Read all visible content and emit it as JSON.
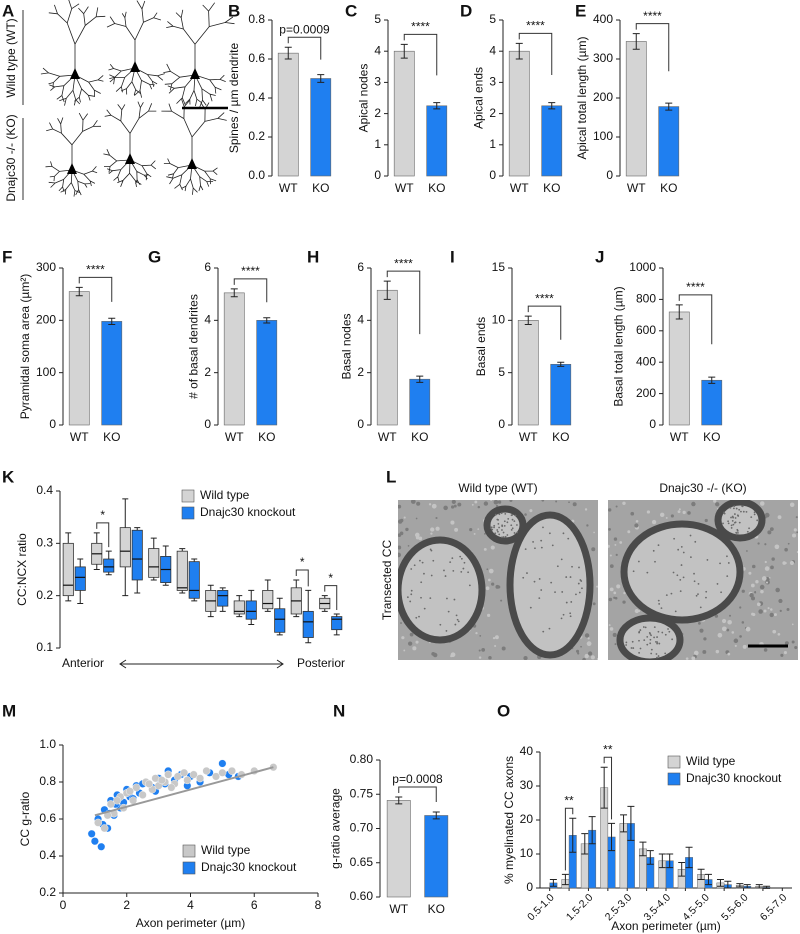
{
  "image_panels": [
    {
      "panel": "A",
      "row_labels": [
        "Wild type (WT)",
        "Dnajc30 -/- (KO)"
      ]
    },
    {
      "panel": "L",
      "side_label": "Transected CC",
      "captions": [
        "Wild type (WT)",
        "Dnajc30 -/- (KO)"
      ]
    }
  ],
  "chart_data": [
    {
      "panel": "B",
      "type": "bar",
      "ylabel": "Spines / µm dendrite",
      "categories": [
        "WT",
        "KO"
      ],
      "values": [
        0.63,
        0.5
      ],
      "errors": [
        0.03,
        0.02
      ],
      "colors": [
        "#d4d4d4",
        "#1f7ff0"
      ],
      "ylim": [
        0,
        0.8
      ],
      "yticks": [
        {
          "value": 0,
          "label": "0.0"
        },
        0.2,
        0.4,
        0.6,
        0.8
      ],
      "annotation": "p=0.0009"
    },
    {
      "panel": "C",
      "type": "bar",
      "ylabel": "Apical nodes",
      "categories": [
        "WT",
        "KO"
      ],
      "values": [
        4.0,
        2.25
      ],
      "errors": [
        0.22,
        0.1
      ],
      "colors": [
        "#d4d4d4",
        "#1f7ff0"
      ],
      "ylim": [
        0,
        5
      ],
      "yticks": [
        0,
        1,
        2,
        3,
        4,
        5
      ],
      "annotation": "****"
    },
    {
      "panel": "D",
      "type": "bar",
      "ylabel": "Apical ends",
      "categories": [
        "WT",
        "KO"
      ],
      "values": [
        4.0,
        2.25
      ],
      "errors": [
        0.25,
        0.1
      ],
      "colors": [
        "#d4d4d4",
        "#1f7ff0"
      ],
      "ylim": [
        0,
        5
      ],
      "yticks": [
        0,
        1,
        2,
        3,
        4,
        5
      ],
      "annotation": "****"
    },
    {
      "panel": "E",
      "type": "bar",
      "ylabel": "Apical total length (µm)",
      "categories": [
        "WT",
        "KO"
      ],
      "values": [
        345,
        178
      ],
      "errors": [
        20,
        9
      ],
      "colors": [
        "#d4d4d4",
        "#1f7ff0"
      ],
      "ylim": [
        0,
        400
      ],
      "yticks": [
        0,
        100,
        200,
        300,
        400
      ],
      "annotation": "****"
    },
    {
      "panel": "F",
      "type": "bar",
      "ylabel": "Pyramidal soma area (µm²)",
      "categories": [
        "WT",
        "KO"
      ],
      "values": [
        255,
        198
      ],
      "errors": [
        8,
        6
      ],
      "colors": [
        "#d4d4d4",
        "#1f7ff0"
      ],
      "ylim": [
        0,
        300
      ],
      "yticks": [
        0,
        100,
        200,
        300
      ],
      "annotation": "****"
    },
    {
      "panel": "G",
      "type": "bar",
      "ylabel": "# of basal dendrites",
      "categories": [
        "WT",
        "KO"
      ],
      "values": [
        5.05,
        4.0
      ],
      "errors": [
        0.15,
        0.1
      ],
      "colors": [
        "#d4d4d4",
        "#1f7ff0"
      ],
      "ylim": [
        0,
        6
      ],
      "yticks": [
        0,
        2,
        4,
        6
      ],
      "annotation": "****"
    },
    {
      "panel": "H",
      "type": "bar",
      "ylabel": "Basal nodes",
      "categories": [
        "WT",
        "KO"
      ],
      "values": [
        5.15,
        1.75
      ],
      "errors": [
        0.35,
        0.12
      ],
      "colors": [
        "#d4d4d4",
        "#1f7ff0"
      ],
      "ylim": [
        0,
        6
      ],
      "yticks": [
        0,
        2,
        4,
        6
      ],
      "annotation": "****"
    },
    {
      "panel": "I",
      "type": "bar",
      "ylabel": "Basal ends",
      "categories": [
        "WT",
        "KO"
      ],
      "values": [
        10.0,
        5.8
      ],
      "errors": [
        0.4,
        0.2
      ],
      "colors": [
        "#d4d4d4",
        "#1f7ff0"
      ],
      "ylim": [
        0,
        15
      ],
      "yticks": [
        0,
        5,
        10,
        15
      ],
      "annotation": "****"
    },
    {
      "panel": "J",
      "type": "bar",
      "ylabel": "Basal total length (µm)",
      "categories": [
        "WT",
        "KO"
      ],
      "values": [
        720,
        285
      ],
      "errors": [
        45,
        20
      ],
      "colors": [
        "#d4d4d4",
        "#1f7ff0"
      ],
      "ylim": [
        0,
        1000
      ],
      "yticks": [
        0,
        200,
        400,
        600,
        800,
        1000
      ],
      "annotation": "****"
    },
    {
      "panel": "K",
      "type": "box",
      "ylabel": "CC:NCX ratio",
      "ylim": [
        0.1,
        0.4
      ],
      "yticks": [
        0.1,
        0.2,
        0.3,
        0.4
      ],
      "legend": "upper center",
      "x_start_label": "Anterior",
      "x_end_label": "Posterior",
      "series": [
        {
          "name": "Wild type",
          "color": "#d4d4d4",
          "boxes": [
            [
              0.19,
              0.2,
              0.22,
              0.3,
              0.32
            ],
            [
              0.25,
              0.26,
              0.28,
              0.3,
              0.32
            ],
            [
              0.2,
              0.255,
              0.285,
              0.33,
              0.385
            ],
            [
              0.23,
              0.235,
              0.255,
              0.29,
              0.31
            ],
            [
              0.205,
              0.21,
              0.215,
              0.285,
              0.29
            ],
            [
              0.16,
              0.17,
              0.19,
              0.21,
              0.22
            ],
            [
              0.16,
              0.165,
              0.17,
              0.19,
              0.2
            ],
            [
              0.17,
              0.175,
              0.185,
              0.21,
              0.23
            ],
            [
              0.16,
              0.165,
              0.19,
              0.215,
              0.23
            ],
            [
              0.17,
              0.175,
              0.185,
              0.195,
              0.2
            ]
          ]
        },
        {
          "name": "Dnajc30 knockout",
          "color": "#1f7ff0",
          "boxes": [
            [
              0.185,
              0.21,
              0.235,
              0.255,
              0.27
            ],
            [
              0.24,
              0.245,
              0.255,
              0.27,
              0.285
            ],
            [
              0.205,
              0.23,
              0.27,
              0.325,
              0.33
            ],
            [
              0.22,
              0.225,
              0.25,
              0.275,
              0.295
            ],
            [
              0.19,
              0.195,
              0.21,
              0.265,
              0.27
            ],
            [
              0.17,
              0.18,
              0.2,
              0.21,
              0.215
            ],
            [
              0.145,
              0.155,
              0.17,
              0.19,
              0.21
            ],
            [
              0.125,
              0.13,
              0.155,
              0.175,
              0.195
            ],
            [
              0.11,
              0.12,
              0.15,
              0.17,
              0.21
            ],
            [
              0.125,
              0.135,
              0.155,
              0.16,
              0.165
            ]
          ]
        }
      ],
      "annotations": [
        {
          "text": "*",
          "index": 1
        },
        {
          "text": "*",
          "index": 8
        },
        {
          "text": "*",
          "index": 9
        }
      ]
    },
    {
      "panel": "M",
      "type": "scatter",
      "xlabel": "Axon perimeter (µm)",
      "ylabel": "CC g-ratio",
      "xlim": [
        0,
        8
      ],
      "xticks": [
        0,
        2,
        4,
        6,
        8
      ],
      "ylim": [
        0.2,
        1.0
      ],
      "yticks": [
        0.2,
        0.4,
        0.6,
        0.8,
        {
          "value": 1.0,
          "label": "1.0"
        }
      ],
      "legend": "lower right",
      "series": [
        {
          "name": "Wild type",
          "color": "#c8c8c8",
          "x": [
            1.1,
            1.3,
            1.5,
            1.6,
            1.8,
            1.9,
            2.0,
            2.2,
            2.3,
            2.5,
            2.6,
            2.8,
            2.9,
            3.0,
            3.2,
            3.3,
            3.5,
            3.6,
            3.8,
            3.9,
            4.1,
            4.3,
            4.5,
            4.8,
            5.0,
            5.3,
            5.6,
            6.0,
            6.6,
            1.4,
            1.7,
            2.1,
            2.7,
            3.1,
            3.4
          ],
          "values": [
            0.58,
            0.55,
            0.68,
            0.63,
            0.72,
            0.66,
            0.74,
            0.7,
            0.77,
            0.73,
            0.8,
            0.76,
            0.82,
            0.78,
            0.8,
            0.84,
            0.79,
            0.83,
            0.85,
            0.81,
            0.84,
            0.82,
            0.86,
            0.83,
            0.85,
            0.86,
            0.84,
            0.86,
            0.88,
            0.62,
            0.7,
            0.75,
            0.79,
            0.81,
            0.77
          ]
        },
        {
          "name": "Dnajc30 knockout",
          "color": "#1f7ff0",
          "x": [
            0.9,
            1.0,
            1.1,
            1.2,
            1.3,
            1.4,
            1.5,
            1.6,
            1.7,
            1.8,
            1.9,
            2.0,
            2.1,
            2.3,
            2.4,
            2.6,
            2.8,
            3.0,
            3.2,
            3.5,
            3.7,
            4.0,
            4.3,
            4.6,
            5.0,
            5.2,
            5.5,
            1.25,
            1.45,
            1.65,
            2.2,
            2.5,
            2.9,
            3.3,
            3.9
          ],
          "values": [
            0.52,
            0.48,
            0.6,
            0.45,
            0.65,
            0.55,
            0.7,
            0.62,
            0.73,
            0.66,
            0.69,
            0.76,
            0.72,
            0.78,
            0.74,
            0.8,
            0.77,
            0.82,
            0.79,
            0.81,
            0.84,
            0.83,
            0.8,
            0.85,
            0.9,
            0.84,
            0.83,
            0.57,
            0.63,
            0.68,
            0.71,
            0.79,
            0.75,
            0.86,
            0.78
          ]
        }
      ],
      "fit_line": {
        "color": "#999999",
        "x": [
          1.0,
          6.6
        ],
        "y": [
          0.62,
          0.88
        ]
      }
    },
    {
      "panel": "N",
      "type": "bar",
      "ylabel": "g-ratio average",
      "categories": [
        "WT",
        "KO"
      ],
      "values": [
        0.741,
        0.719
      ],
      "errors": [
        0.005,
        0.005
      ],
      "colors": [
        "#d4d4d4",
        "#1f7ff0"
      ],
      "ylim": [
        0.6,
        0.8
      ],
      "yticks": [
        {
          "value": 0.6,
          "label": "0.60"
        },
        0.65,
        {
          "value": 0.7,
          "label": "0.70"
        },
        0.75,
        {
          "value": 0.8,
          "label": "0.80"
        }
      ],
      "annotation": "p=0.0008"
    },
    {
      "panel": "O",
      "type": "grouped_bar",
      "xlabel": "Axon perimeter (µm)",
      "ylabel": "% myelinated CC axons",
      "ylim": [
        0,
        40
      ],
      "yticks": [
        0,
        10,
        20,
        30,
        40
      ],
      "legend": "upper right",
      "categories": [
        "0.5-1.0",
        null,
        "1.5-2.0",
        null,
        "2.5-3.0",
        null,
        "3.5-4.0",
        null,
        "4.5-5.0",
        null,
        "5.5-6.0",
        null,
        "6.5-7.0"
      ],
      "series": [
        {
          "name": "Wild type",
          "color": "#d4d4d4",
          "values": [
            0,
            2.5,
            13,
            29.5,
            19,
            11.5,
            8,
            5.5,
            4,
            1.5,
            0.8,
            0.5,
            0
          ],
          "errors": [
            0,
            1.5,
            3,
            6,
            2.5,
            2,
            2,
            2,
            1.5,
            1,
            0.5,
            0.5,
            0
          ]
        },
        {
          "name": "Dnajc30 knockout",
          "color": "#1f7ff0",
          "values": [
            1.5,
            15.5,
            17,
            15,
            19,
            9,
            8,
            9,
            2.5,
            1,
            0.5,
            0.2,
            0
          ],
          "errors": [
            1,
            5,
            4,
            4,
            5,
            2,
            2,
            3,
            1.5,
            1,
            0.5,
            0.3,
            0
          ]
        }
      ],
      "annotations": [
        {
          "text": "**",
          "index": 1
        },
        {
          "text": "**",
          "index": 3
        }
      ]
    }
  ]
}
